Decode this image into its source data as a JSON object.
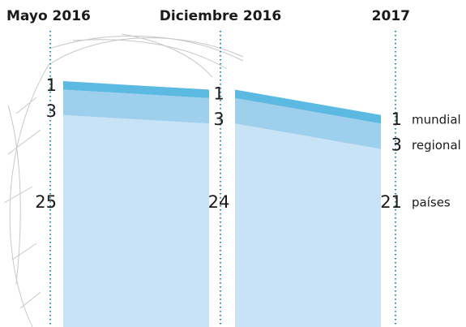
{
  "chart_data": {
    "type": "stacked_area",
    "categories": [
      "Mayo 2016",
      "Diciembre 2016",
      "2017"
    ],
    "series": [
      {
        "name": "países",
        "color": "#c8e3f5",
        "values": [
          25,
          24,
          21
        ]
      },
      {
        "name": "regional",
        "color": "#9ed0ee",
        "values": [
          3,
          3,
          3
        ]
      },
      {
        "name": "mundial",
        "color": "#5cb9e1",
        "values": [
          1,
          1,
          1
        ]
      }
    ],
    "ylim": [
      0,
      29
    ]
  }
}
